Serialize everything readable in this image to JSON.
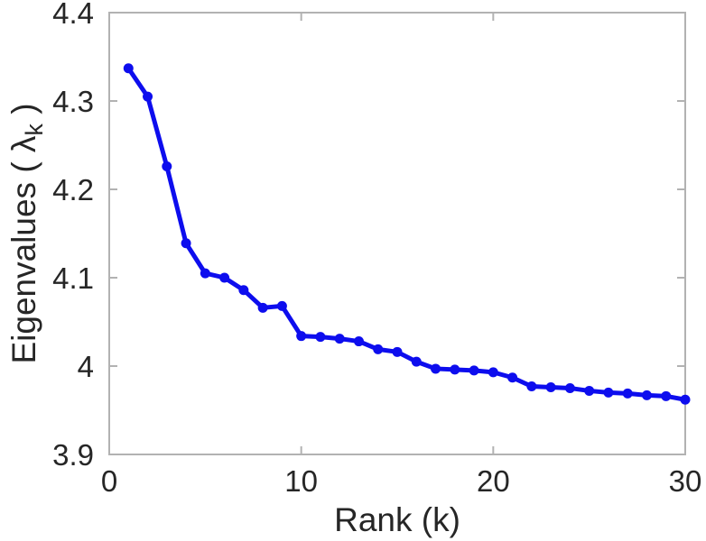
{
  "chart_data": {
    "type": "line",
    "title": "",
    "xlabel": "Rank (k)",
    "ylabel": {
      "prefix": "Eigenvalues ( λ",
      "sub": "k",
      "suffix": " )"
    },
    "x": [
      1,
      2,
      3,
      4,
      5,
      6,
      7,
      8,
      9,
      10,
      11,
      12,
      13,
      14,
      15,
      16,
      17,
      18,
      19,
      20,
      21,
      22,
      23,
      24,
      25,
      26,
      27,
      28,
      29,
      30
    ],
    "series": [
      {
        "name": "eigenvalues",
        "values": [
          4.337,
          4.305,
          4.226,
          4.139,
          4.105,
          4.1,
          4.086,
          4.066,
          4.068,
          4.034,
          4.033,
          4.031,
          4.028,
          4.019,
          4.016,
          4.005,
          3.997,
          3.996,
          3.995,
          3.993,
          3.987,
          3.977,
          3.976,
          3.975,
          3.972,
          3.97,
          3.969,
          3.967,
          3.966,
          3.962
        ]
      }
    ],
    "xlim": [
      0,
      30
    ],
    "ylim": [
      3.9,
      4.4
    ],
    "xticks": [
      0,
      10,
      20,
      30
    ],
    "xtick_labels": [
      "0",
      "10",
      "20",
      "30"
    ],
    "yticks": [
      3.9,
      4.0,
      4.1,
      4.2,
      4.3,
      4.4
    ],
    "ytick_labels": [
      "3.9",
      "4",
      "4.1",
      "4.2",
      "4.3",
      "4.4"
    ],
    "grid": false,
    "legend_position": "none",
    "marker": "circle",
    "line_color": "#0d0dee",
    "axis_color": "#b2b2b2",
    "tick_label_color": "#262626",
    "background_color": "#ffffff"
  }
}
